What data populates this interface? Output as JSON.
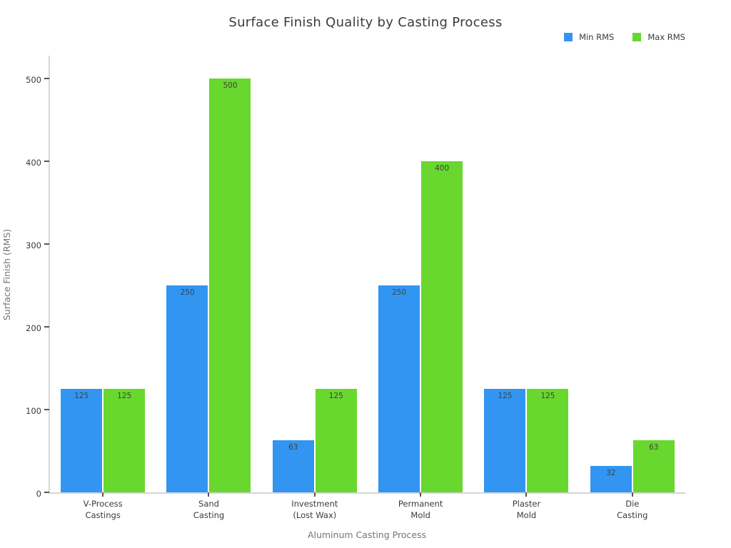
{
  "chart": {
    "title": "Surface Finish Quality by Casting Process",
    "xlabel": "Aluminum Casting Process",
    "ylabel": "Surface Finish (RMS)"
  },
  "chart_data": {
    "type": "bar",
    "title": "Surface Finish Quality by Casting Process",
    "xlabel": "Aluminum Casting Process",
    "ylabel": "Surface Finish (RMS)",
    "categories": [
      "V-Process Castings",
      "Sand Casting",
      "Investment (Lost Wax)",
      "Permanent Mold",
      "Plaster Mold",
      "Die Casting"
    ],
    "category_lines": [
      [
        "V-Process",
        "Castings"
      ],
      [
        "Sand",
        "Casting"
      ],
      [
        "Investment",
        "(Lost Wax)"
      ],
      [
        "Permanent",
        "Mold"
      ],
      [
        "Plaster",
        "Mold"
      ],
      [
        "Die",
        "Casting"
      ]
    ],
    "series": [
      {
        "name": "Min RMS",
        "color": "#3295f1",
        "values": [
          125,
          250,
          63,
          250,
          125,
          32
        ]
      },
      {
        "name": "Max RMS",
        "color": "#68d72e",
        "values": [
          125,
          500,
          125,
          400,
          125,
          63
        ]
      }
    ],
    "ylim": [
      0,
      500
    ],
    "yticks": [
      0,
      100,
      200,
      300,
      400,
      500
    ],
    "grid": false,
    "legend_position": "top-right",
    "value_labels": "inside-top",
    "background_color": "#ffffff"
  }
}
